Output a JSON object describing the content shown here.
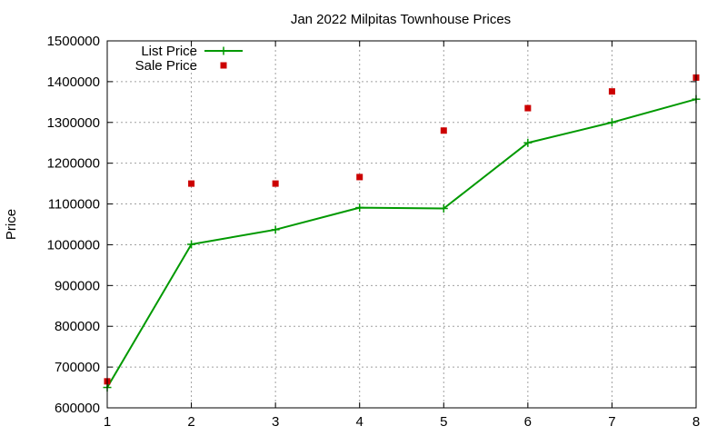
{
  "chart_data": {
    "type": "line",
    "title": "Jan 2022 Milpitas Townhouse Prices",
    "xlabel": "",
    "ylabel": "Price",
    "x": [
      1,
      2,
      3,
      4,
      5,
      6,
      7,
      8
    ],
    "xlim": [
      1,
      8
    ],
    "ylim": [
      600000,
      1500000
    ],
    "x_ticks": [
      "1",
      "2",
      "3",
      "4",
      "5",
      "6",
      "7",
      "8"
    ],
    "y_ticks": [
      "600000",
      "700000",
      "800000",
      "900000",
      "1000000",
      "1100000",
      "1200000",
      "1300000",
      "1400000",
      "1500000"
    ],
    "grid": true,
    "legend_position": "top-left",
    "series": [
      {
        "name": "List Price",
        "style": "line-with-plus-markers",
        "color": "#009900",
        "values": [
          650000,
          1001000,
          1037000,
          1091000,
          1089000,
          1250000,
          1300000,
          1357000
        ]
      },
      {
        "name": "Sale Price",
        "style": "square-markers",
        "color": "#cc0000",
        "values": [
          665000,
          1150000,
          1150000,
          1166000,
          1280000,
          1335000,
          1376000,
          1410000
        ]
      }
    ]
  }
}
